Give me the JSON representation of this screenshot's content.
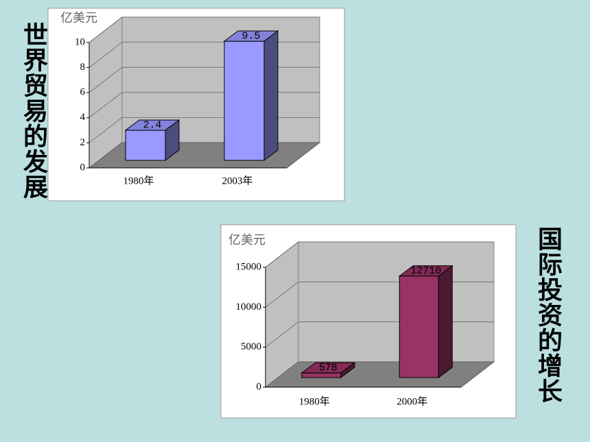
{
  "chart_data": [
    {
      "type": "bar",
      "title": "世界贸易的发展",
      "unit_label": "亿美元",
      "categories": [
        "1980年",
        "2003年"
      ],
      "values": [
        2.4,
        9.5
      ],
      "color": "#9999ff",
      "ylim": [
        0,
        10
      ],
      "yticks": [
        0,
        2,
        4,
        6,
        8,
        10
      ],
      "grid": true
    },
    {
      "type": "bar",
      "title": "国际投资的增长",
      "unit_label": "亿美元",
      "categories": [
        "1980年",
        "2000年"
      ],
      "values": [
        578,
        12710
      ],
      "color": "#993366",
      "ylim": [
        0,
        15000
      ],
      "yticks": [
        0,
        5000,
        10000,
        15000
      ],
      "grid": true
    }
  ]
}
